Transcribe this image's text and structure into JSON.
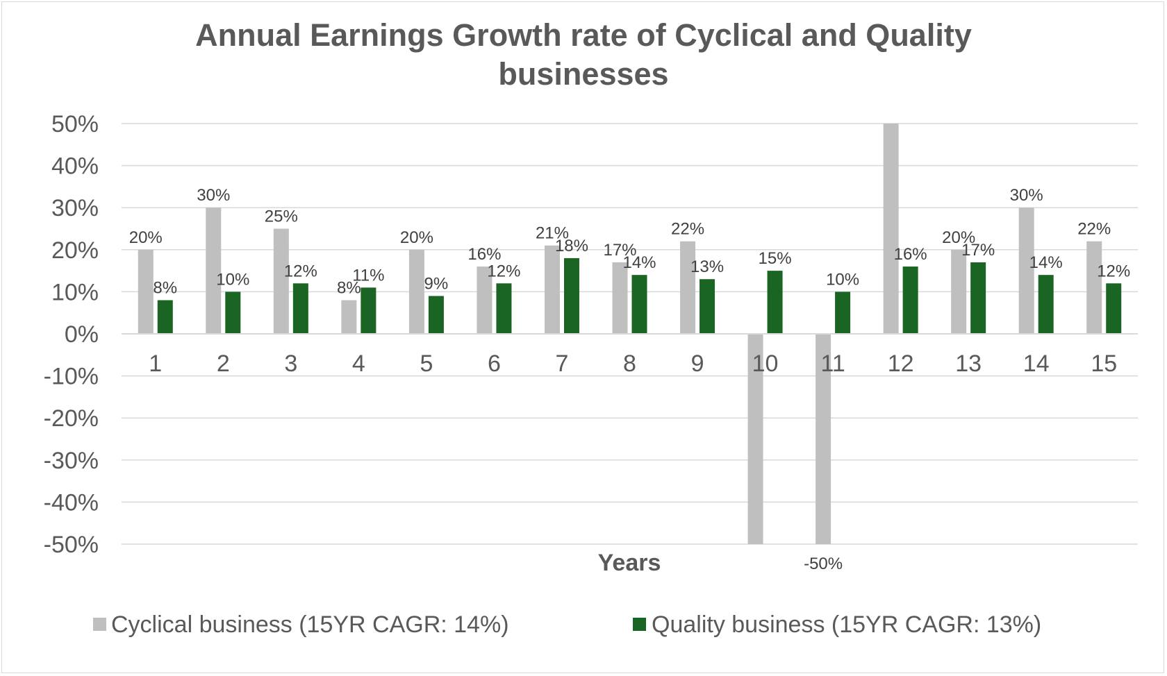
{
  "chart_data": {
    "type": "bar",
    "title_lines": [
      "Annual Earnings Growth rate of Cyclical and Quality",
      "businesses"
    ],
    "xlabel": "Years",
    "ylabel": "",
    "categories": [
      "1",
      "2",
      "3",
      "4",
      "5",
      "6",
      "7",
      "8",
      "9",
      "10",
      "11",
      "12",
      "13",
      "14",
      "15"
    ],
    "ylim": [
      -50,
      50
    ],
    "ytick_labels": [
      "50%",
      "40%",
      "30%",
      "20%",
      "10%",
      "0%",
      "-10%",
      "-20%",
      "-30%",
      "-40%",
      "-50%"
    ],
    "grid": true,
    "legend_position": "bottom",
    "series": [
      {
        "name": "Cyclical business (15YR CAGR: 14%)",
        "color": "#bfbfbf",
        "values": [
          20,
          30,
          25,
          8,
          20,
          16,
          21,
          17,
          22,
          -50,
          -50,
          50,
          20,
          30,
          22
        ],
        "labels": [
          "20%",
          "30%",
          "25%",
          "8%",
          "20%",
          "16%",
          "21%",
          "17%",
          "22%",
          "",
          "-50%",
          "",
          "20%",
          "30%",
          "22%"
        ]
      },
      {
        "name": "Quality business (15YR CAGR: 13%)",
        "color": "#1a6523",
        "values": [
          8,
          10,
          12,
          11,
          9,
          12,
          18,
          14,
          13,
          15,
          10,
          16,
          17,
          14,
          12
        ],
        "labels": [
          "8%",
          "10%",
          "12%",
          "11%",
          "9%",
          "12%",
          "18%",
          "14%",
          "13%",
          "15%",
          "10%",
          "16%",
          "17%",
          "14%",
          "12%"
        ]
      }
    ]
  },
  "colors": {
    "gridline": "#d9d9d9",
    "axis": "#d9d9d9"
  }
}
